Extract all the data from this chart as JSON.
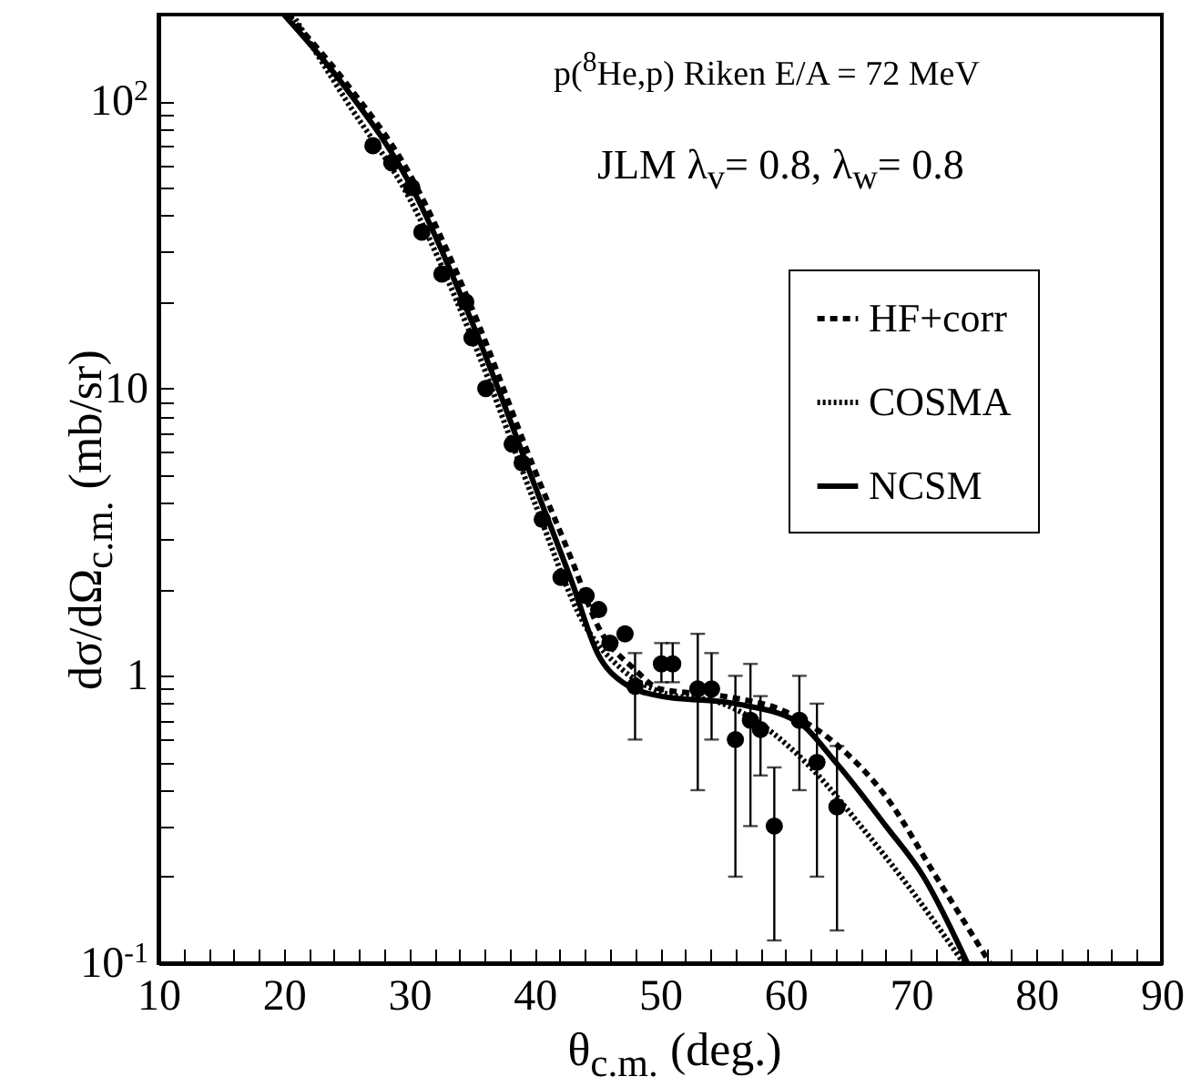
{
  "chart_data": {
    "type": "line",
    "xlabel": "θ$_{c.m.}$ (deg.)",
    "ylabel": "dσ/dΩ$_{c.m.}$ (mb/sr)",
    "annotations": [
      "p($^{8}$He,p)  Riken  E/A = 72 MeV",
      "JLM   λ$_{v}$= 0.8, λ$_{w}$= 0.8"
    ],
    "log": "y",
    "xlim": [
      10,
      90
    ],
    "ylim": [
      0.1,
      200
    ],
    "xticks": [
      10,
      {
        "value": 12,
        "label": null
      },
      {
        "value": 14,
        "label": null
      },
      {
        "value": 16,
        "label": null
      },
      {
        "value": 18,
        "label": null
      },
      20,
      {
        "value": 22,
        "label": null
      },
      {
        "value": 24,
        "label": null
      },
      {
        "value": 26,
        "label": null
      },
      {
        "value": 28,
        "label": null
      },
      30,
      {
        "value": 32,
        "label": null
      },
      {
        "value": 34,
        "label": null
      },
      {
        "value": 36,
        "label": null
      },
      {
        "value": 38,
        "label": null
      },
      40,
      {
        "value": 42,
        "label": null
      },
      {
        "value": 44,
        "label": null
      },
      {
        "value": 46,
        "label": null
      },
      {
        "value": 48,
        "label": null
      },
      50,
      {
        "value": 52,
        "label": null
      },
      {
        "value": 54,
        "label": null
      },
      {
        "value": 56,
        "label": null
      },
      {
        "value": 58,
        "label": null
      },
      60,
      {
        "value": 62,
        "label": null
      },
      {
        "value": 64,
        "label": null
      },
      {
        "value": 66,
        "label": null
      },
      {
        "value": 68,
        "label": null
      },
      70,
      {
        "value": 72,
        "label": null
      },
      {
        "value": 74,
        "label": null
      },
      {
        "value": 76,
        "label": null
      },
      {
        "value": 78,
        "label": null
      },
      80,
      {
        "value": 82,
        "label": null
      },
      {
        "value": 84,
        "label": null
      },
      {
        "value": 86,
        "label": null
      },
      {
        "value": 88,
        "label": null
      },
      90
    ],
    "yticks": [
      {
        "value": 0.1,
        "label": "10$^{-1}$"
      },
      {
        "value": 0.2,
        "label": null
      },
      {
        "value": 0.3,
        "label": null
      },
      {
        "value": 0.4,
        "label": null
      },
      {
        "value": 0.5,
        "label": null
      },
      {
        "value": 0.6,
        "label": null
      },
      {
        "value": 0.7,
        "label": null
      },
      {
        "value": 0.8,
        "label": null
      },
      {
        "value": 0.9,
        "label": null
      },
      1,
      {
        "value": 2,
        "label": null
      },
      {
        "value": 3,
        "label": null
      },
      {
        "value": 4,
        "label": null
      },
      {
        "value": 5,
        "label": null
      },
      {
        "value": 6,
        "label": null
      },
      {
        "value": 7,
        "label": null
      },
      {
        "value": 8,
        "label": null
      },
      {
        "value": 9,
        "label": null
      },
      10,
      {
        "value": 20,
        "label": null
      },
      {
        "value": 30,
        "label": null
      },
      {
        "value": 40,
        "label": null
      },
      {
        "value": 50,
        "label": null
      },
      {
        "value": 60,
        "label": null
      },
      {
        "value": 70,
        "label": null
      },
      {
        "value": 80,
        "label": null
      },
      {
        "value": 90,
        "label": null
      },
      {
        "value": 100,
        "label": "10$^{2}$"
      }
    ],
    "grid": false,
    "legend": "top right",
    "series": [
      {
        "name": "HF+corr",
        "color": "#000000",
        "line_style": "dashed",
        "x": [
          20.3,
          25,
          30,
          35,
          40,
          43,
          45,
          48,
          50,
          55,
          60,
          64,
          68,
          72,
          76.3
        ],
        "values": [
          200,
          115,
          56,
          19,
          5.2,
          2.5,
          1.5,
          1.05,
          0.9,
          0.85,
          0.75,
          0.58,
          0.38,
          0.2,
          0.1
        ]
      },
      {
        "name": "COSMA",
        "color": "#000000",
        "line_style": "dotted",
        "x": [
          20.7,
          25,
          30,
          35,
          40,
          44,
          47,
          50,
          55,
          58,
          62,
          66,
          70,
          74.2
        ],
        "values": [
          200,
          100,
          46,
          15,
          4.0,
          1.5,
          1.05,
          0.88,
          0.8,
          0.68,
          0.48,
          0.3,
          0.18,
          0.1
        ]
      },
      {
        "name": "NCSM",
        "color": "#000000",
        "line_style": "solid",
        "x": [
          20,
          25,
          30,
          35,
          40,
          43,
          45,
          47,
          50,
          56,
          61,
          64,
          68,
          71,
          74.5
        ],
        "values": [
          200,
          110,
          52,
          17,
          4.6,
          2.1,
          1.2,
          0.95,
          0.85,
          0.8,
          0.69,
          0.5,
          0.3,
          0.2,
          0.1
        ]
      },
      {
        "type": "scatter",
        "color": "#000000",
        "marker": "circle",
        "x": [
          27.1,
          28.6,
          30.2,
          31.0,
          32.6,
          34.5,
          35.0,
          36.1,
          38.2,
          39.0,
          40.6,
          42.1,
          44.1,
          45.1,
          46.0,
          47.2,
          48.0,
          50.1,
          51.0,
          53.0,
          54.1,
          56.0,
          57.2,
          58.0,
          59.1,
          61.1,
          62.5,
          64.1
        ],
        "values": [
          70,
          61,
          50,
          35,
          25,
          20,
          15,
          10,
          6.4,
          5.5,
          3.5,
          2.2,
          1.9,
          1.7,
          1.3,
          1.4,
          0.92,
          1.1,
          1.1,
          0.9,
          0.9,
          0.6,
          0.7,
          0.65,
          0.3,
          0.7,
          0.5,
          0.35
        ],
        "errors": [
          null,
          null,
          null,
          null,
          null,
          null,
          null,
          null,
          null,
          null,
          null,
          null,
          null,
          null,
          null,
          null,
          [
            0.6,
            1.2
          ],
          [
            0.95,
            1.3
          ],
          [
            0.95,
            1.3
          ],
          [
            0.4,
            1.4
          ],
          [
            0.6,
            1.2
          ],
          [
            0.2,
            1.0
          ],
          [
            0.3,
            1.1
          ],
          [
            0.45,
            0.85
          ],
          [
            0.12,
            0.48
          ],
          [
            0.4,
            1.0
          ],
          [
            0.2,
            0.8
          ],
          [
            0.13,
            0.57
          ]
        ]
      }
    ]
  }
}
